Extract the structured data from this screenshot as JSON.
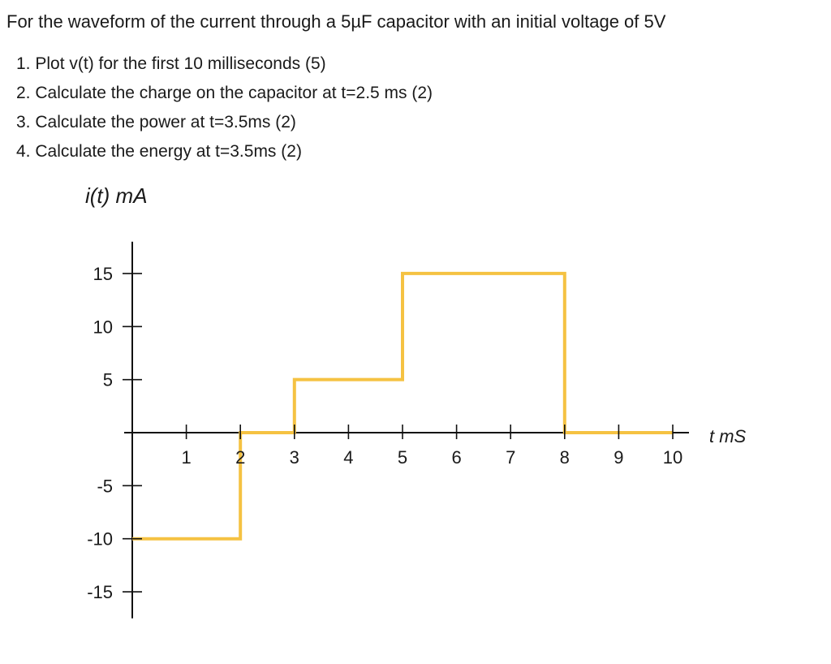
{
  "problem": {
    "intro": "For the waveform of the current through a 5µF capacitor with an initial voltage of 5V",
    "questions": [
      "1. Plot v(t) for the first 10 milliseconds (5)",
      "2. Calculate the charge on the capacitor at t=2.5 ms (2)",
      "3. Calculate the power at t=3.5ms (2)",
      "4. Calculate the energy at t=3.5ms (2)"
    ]
  },
  "chart_data": {
    "type": "line",
    "step": true,
    "title": "",
    "ylabel": "i(t) mA",
    "xlabel": "t mS",
    "x_ticks": [
      1,
      2,
      3,
      4,
      5,
      6,
      7,
      8,
      9,
      10
    ],
    "x_tick_labels": [
      "1",
      "2",
      "3",
      "4",
      "5",
      "6",
      "7",
      "8",
      "9",
      "10"
    ],
    "y_ticks": [
      15,
      10,
      5,
      -5,
      -10,
      -15
    ],
    "y_tick_labels": [
      "15",
      "10",
      "5",
      "-5",
      "-10",
      "-15"
    ],
    "xlim": [
      0,
      10.3
    ],
    "ylim": [
      -17.5,
      18
    ],
    "grid": false,
    "series": [
      {
        "color": "#f5c242",
        "x": [
          0,
          2,
          2,
          3,
          3,
          5,
          5,
          8,
          8,
          10
        ],
        "y": [
          -10,
          -10,
          0,
          0,
          5,
          5,
          15,
          15,
          0,
          0
        ]
      }
    ],
    "axis_color": "#111111"
  }
}
